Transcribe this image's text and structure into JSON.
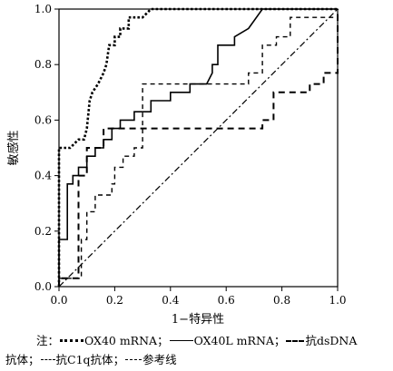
{
  "chart_data": {
    "type": "line",
    "xlabel": "1−特异性",
    "ylabel": "敏感性",
    "xlim": [
      0,
      1.0
    ],
    "ylim": [
      0,
      1.0
    ],
    "x_ticks": [
      "0.0",
      "0.2",
      "0.4",
      "0.6",
      "0.8",
      "1.0"
    ],
    "y_ticks": [
      "0.0",
      "0.2",
      "0.4",
      "0.6",
      "0.8",
      "1.0"
    ],
    "grid": false,
    "series": [
      {
        "name": "OX40 mRNA",
        "style": "dotted-thick",
        "x": [
          0,
          0,
          0.04,
          0.07,
          0.09,
          0.1,
          0.11,
          0.12,
          0.14,
          0.16,
          0.17,
          0.18,
          0.2,
          0.2,
          0.22,
          0.22,
          0.25,
          0.25,
          0.28,
          0.3,
          0.33,
          1.0
        ],
        "y": [
          0,
          0.5,
          0.5,
          0.53,
          0.53,
          0.57,
          0.67,
          0.7,
          0.73,
          0.77,
          0.8,
          0.87,
          0.87,
          0.9,
          0.9,
          0.93,
          0.93,
          0.97,
          0.97,
          0.97,
          1.0,
          1.0
        ]
      },
      {
        "name": "OX40L mRNA",
        "style": "solid",
        "x": [
          0,
          0,
          0.03,
          0.03,
          0.05,
          0.05,
          0.07,
          0.07,
          0.1,
          0.1,
          0.13,
          0.13,
          0.16,
          0.16,
          0.19,
          0.19,
          0.22,
          0.22,
          0.27,
          0.27,
          0.33,
          0.33,
          0.4,
          0.4,
          0.47,
          0.47,
          0.53,
          0.55,
          0.55,
          0.57,
          0.57,
          0.63,
          0.63,
          0.68,
          0.73,
          1.0,
          1.0
        ],
        "y": [
          0,
          0.17,
          0.17,
          0.37,
          0.37,
          0.4,
          0.4,
          0.43,
          0.43,
          0.47,
          0.47,
          0.5,
          0.5,
          0.53,
          0.53,
          0.57,
          0.57,
          0.6,
          0.6,
          0.63,
          0.63,
          0.67,
          0.67,
          0.7,
          0.7,
          0.73,
          0.73,
          0.77,
          0.8,
          0.8,
          0.87,
          0.87,
          0.9,
          0.93,
          1.0,
          1.0,
          1.0
        ]
      },
      {
        "name": "抗dsDNA抗体",
        "style": "dashed",
        "x": [
          0,
          0,
          0.07,
          0.07,
          0.1,
          0.1,
          0.16,
          0.16,
          0.23,
          0.23,
          0.27,
          0.27,
          0.35,
          0.35,
          0.42,
          0.42,
          0.54,
          0.54,
          0.73,
          0.73,
          0.77,
          0.77,
          0.9,
          0.9,
          0.95,
          0.95,
          1.0,
          1.0
        ],
        "y": [
          0,
          0.03,
          0.03,
          0.4,
          0.4,
          0.5,
          0.5,
          0.57,
          0.57,
          0.57,
          0.57,
          0.57,
          0.57,
          0.57,
          0.57,
          0.57,
          0.57,
          0.57,
          0.57,
          0.6,
          0.6,
          0.7,
          0.7,
          0.73,
          0.73,
          0.77,
          0.77,
          1.0
        ]
      },
      {
        "name": "抗C1q抗体",
        "style": "dashed-fine",
        "x": [
          0,
          0,
          0.08,
          0.08,
          0.1,
          0.1,
          0.13,
          0.13,
          0.19,
          0.19,
          0.2,
          0.2,
          0.23,
          0.23,
          0.27,
          0.27,
          0.3,
          0.3,
          0.48,
          0.48,
          0.68,
          0.68,
          0.73,
          0.73,
          0.78,
          0.78,
          0.83,
          0.83,
          1.0,
          1.0
        ],
        "y": [
          0,
          0.03,
          0.03,
          0.17,
          0.17,
          0.27,
          0.27,
          0.33,
          0.33,
          0.37,
          0.37,
          0.43,
          0.43,
          0.47,
          0.47,
          0.5,
          0.5,
          0.73,
          0.73,
          0.73,
          0.73,
          0.77,
          0.77,
          0.87,
          0.87,
          0.9,
          0.9,
          0.97,
          0.97,
          1.0
        ]
      },
      {
        "name": "参考线",
        "style": "dash-dot",
        "x": [
          0,
          1.0
        ],
        "y": [
          0,
          1.0
        ]
      }
    ],
    "legend": {
      "note_prefix": "注：",
      "sep": "；",
      "items": [
        {
          "label": "OX40 mRNA"
        },
        {
          "label": "OX40L mRNA"
        },
        {
          "label": "抗dsDNA"
        },
        {
          "label_cont": "抗体"
        },
        {
          "label": "抗C1q抗体"
        },
        {
          "label": "参考线"
        }
      ]
    }
  }
}
